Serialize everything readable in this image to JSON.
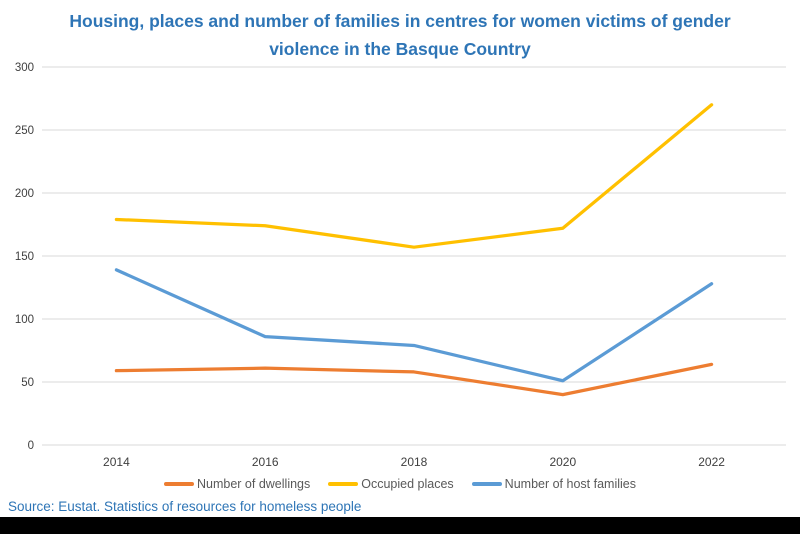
{
  "chart_data": {
    "type": "line",
    "title": "Housing, places and number of families in centres for women victims of gender violence in the Basque Country",
    "categories": [
      "2014",
      "2016",
      "2018",
      "2020",
      "2022"
    ],
    "series": [
      {
        "name": "Number of dwellings",
        "color": "#ED7D31",
        "values": [
          59,
          61,
          58,
          40,
          64
        ]
      },
      {
        "name": "Occupied places",
        "color": "#FFC000",
        "values": [
          179,
          174,
          157,
          172,
          270
        ]
      },
      {
        "name": "Number of host families",
        "color": "#5B9BD5",
        "values": [
          139,
          86,
          79,
          51,
          128
        ]
      }
    ],
    "xlabel": "",
    "ylabel": "",
    "ylim": [
      0,
      300
    ],
    "yticks": [
      0,
      50,
      100,
      150,
      200,
      250,
      300
    ],
    "grid": true,
    "legend_position": "bottom"
  },
  "source_note": "Source: Eustat. Statistics of resources for homeless people",
  "colors": {
    "title_text": "#2E75B6",
    "source_text": "#2E75B6",
    "axis_text": "#404040",
    "gridline": "#D9D9D9",
    "background": "#FFFFFF",
    "bottom_bar": "#000000"
  }
}
